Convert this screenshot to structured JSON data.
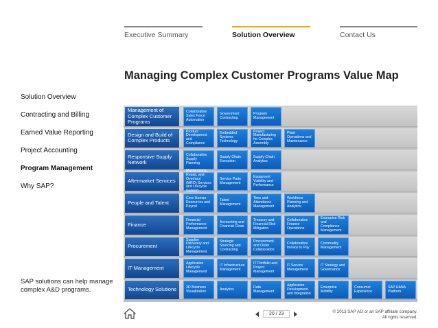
{
  "tabs": [
    {
      "label": "Executive Summary",
      "active": false
    },
    {
      "label": "Solution Overview",
      "active": true
    },
    {
      "label": "Contact Us",
      "active": false
    }
  ],
  "page_title": "Managing Complex Customer Programs Value Map",
  "leftnav": [
    {
      "label": "Solution Overview",
      "active": false
    },
    {
      "label": "Contracting and Billing",
      "active": false
    },
    {
      "label": "Earned Value Reporting",
      "active": false
    },
    {
      "label": "Project Accounting",
      "active": false
    },
    {
      "label": "Program Management",
      "active": true
    },
    {
      "label": "Why SAP?",
      "active": false
    }
  ],
  "side_note": "SAP solutions can help manage complex A&D programs.",
  "value_map": [
    {
      "label": "Management of Complex Customer Programs",
      "cells": [
        "Collaborative Sales Force Automation",
        "Government Contracting",
        "Program Management"
      ]
    },
    {
      "label": "Design and Build of Complex Products",
      "cells": [
        "Product Development and Compliance",
        "Embedded Systems Technology",
        "Project Manufacturing for Complex Assembly",
        "Plant Operations and Maintenance"
      ]
    },
    {
      "label": "Responsive Supply Network",
      "cells": [
        "Collaborative Supply Planning",
        "Supply Chain Execution",
        "Supply Chain Analytics"
      ]
    },
    {
      "label": "Aftermarket Services",
      "cells": [
        "Maintenance, Repair, and Overhaul (MRO) Services and Lifecycle Support",
        "Service Parts Management",
        "Equipment Visibility and Performance"
      ]
    },
    {
      "label": "People and Talent",
      "cells": [
        "Core Human Resources and Payroll",
        "Talent Management",
        "Time and Attendance Management",
        "Workforce Planning and Analytics"
      ]
    },
    {
      "label": "Finance",
      "cells": [
        "Financial Performance Management",
        "Accounting and Financial Close",
        "Treasury and Financial Risk Mitigation",
        "Collaborative Finance Operations",
        "Enterprise Risk and Compliance Management"
      ]
    },
    {
      "label": "Procurement",
      "cells": [
        "Supplier Discovery and Lifecycle Management",
        "Strategic Sourcing and Contracting",
        "Procurement and Order Collaboration",
        "Collaborative Invoice to Pay",
        "Commodity Management"
      ]
    },
    {
      "label": "IT Management",
      "cells": [
        "Application Lifecycle Management",
        "IT Infrastructure Management",
        "IT Portfolio and Project Management",
        "IT Service Management",
        "IT Strategy and Governance"
      ]
    },
    {
      "label": "Technology Solutions",
      "cells": [
        "3D Business Visualization",
        "Analytics",
        "Data Management",
        "Application Development and Integration",
        "Enterprise Mobility",
        "Consumer Experience",
        "SAP HANA Platform"
      ]
    }
  ],
  "footer": {
    "page_indicator": "20 / 23",
    "copyright_line1": "© 2013 SAP AG or an SAP affiliate company.",
    "copyright_line2": "All rights reserved."
  }
}
